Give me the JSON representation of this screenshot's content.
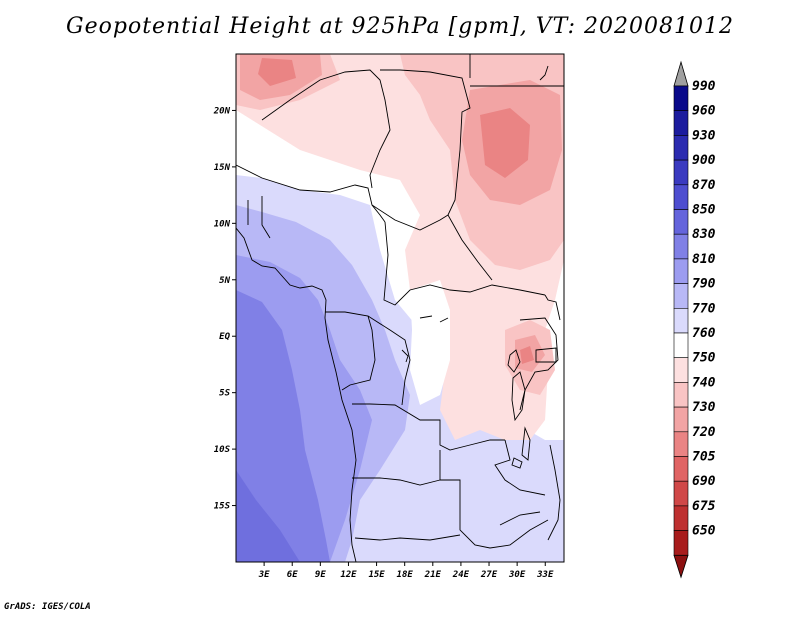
{
  "title": "Geopotential Height at 925hPa [gpm], VT: 2020081012",
  "footer": "GrADS: IGES/COLA",
  "map": {
    "lon_range": [
      0,
      35
    ],
    "lat_range": [
      -20,
      25
    ],
    "lat_ticks": [
      {
        "value": 20,
        "label": "20N"
      },
      {
        "value": 15,
        "label": "15N"
      },
      {
        "value": 10,
        "label": "10N"
      },
      {
        "value": 5,
        "label": "5N"
      },
      {
        "value": 0,
        "label": "EQ"
      },
      {
        "value": -5,
        "label": "5S"
      },
      {
        "value": -10,
        "label": "10S"
      },
      {
        "value": -15,
        "label": "15S"
      }
    ],
    "lon_ticks": [
      {
        "value": 3,
        "label": "3E"
      },
      {
        "value": 6,
        "label": "6E"
      },
      {
        "value": 9,
        "label": "9E"
      },
      {
        "value": 12,
        "label": "12E"
      },
      {
        "value": 15,
        "label": "15E"
      },
      {
        "value": 18,
        "label": "18E"
      },
      {
        "value": 21,
        "label": "21E"
      },
      {
        "value": 24,
        "label": "24E"
      },
      {
        "value": 27,
        "label": "27E"
      },
      {
        "value": 30,
        "label": "30E"
      },
      {
        "value": 33,
        "label": "33E"
      }
    ]
  },
  "colorbar": {
    "levels": [
      {
        "label": "990",
        "color": "#0a0a8a"
      },
      {
        "label": "960",
        "color": "#1c1c9e"
      },
      {
        "label": "930",
        "color": "#2b2bb0"
      },
      {
        "label": "900",
        "color": "#3a3ac0"
      },
      {
        "label": "870",
        "color": "#4e4ed0"
      },
      {
        "label": "850",
        "color": "#6464dc"
      },
      {
        "label": "830",
        "color": "#8080e6"
      },
      {
        "label": "810",
        "color": "#9c9cf0"
      },
      {
        "label": "790",
        "color": "#b8b8f6"
      },
      {
        "label": "770",
        "color": "#dadafc"
      },
      {
        "label": "760",
        "color": "#ffffff"
      },
      {
        "label": "750",
        "color": "#fde0e0"
      },
      {
        "label": "740",
        "color": "#f9c4c4"
      },
      {
        "label": "730",
        "color": "#f2a4a4"
      },
      {
        "label": "720",
        "color": "#ea8484"
      },
      {
        "label": "705",
        "color": "#e06464"
      },
      {
        "label": "690",
        "color": "#d04848"
      },
      {
        "label": "675",
        "color": "#be3030"
      },
      {
        "label": "650",
        "color": "#a81c1c"
      }
    ],
    "top_arrow_color": "#a0a0a0",
    "bottom_arrow_color": "#8c1010"
  }
}
